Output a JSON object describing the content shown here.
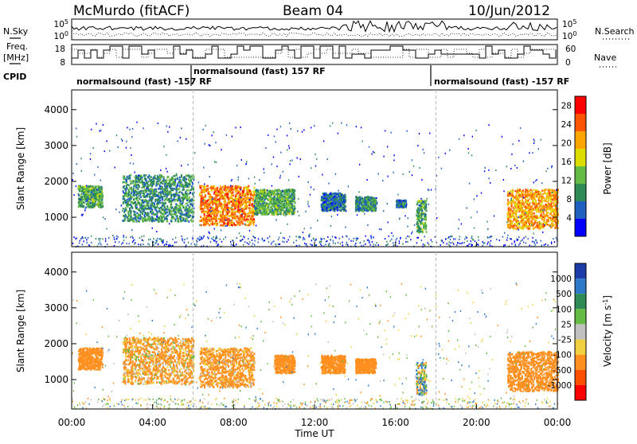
{
  "header": {
    "station": "McMurdo (fitACF)",
    "beam": "Beam 04",
    "date": "10/Jun/2012"
  },
  "params": {
    "nsky_label": "N.Sky",
    "nsearch_label": "N.Search",
    "freq_label_1": "Freq.",
    "freq_label_2": "[MHz]",
    "nave_label": "Nave",
    "cpid_label": "CPID",
    "left_ticks": [
      "10^5",
      "10^0",
      "18",
      "8"
    ],
    "right_ticks": [
      "10^5",
      "10^0",
      "60",
      "0"
    ]
  },
  "cpid": {
    "segments": [
      {
        "label": "normalsound (fast) -157 RF",
        "start_hour": 0.0,
        "end_hour": 6.0
      },
      {
        "label": "normalsound (fast) 157 RF",
        "start_hour": 6.0,
        "end_hour": 18.0
      },
      {
        "label": "normalsound (fast) -157 RF",
        "start_hour": 18.0,
        "end_hour": 24.0
      }
    ]
  },
  "colors": {
    "power": [
      "#0000ff",
      "#1f5fbf",
      "#2e8b57",
      "#66bb44",
      "#dddd00",
      "#ffa500",
      "#ff5500",
      "#ff0000"
    ],
    "velocity": [
      "#1e3ca8",
      "#2e78c8",
      "#2e8b57",
      "#66bb44",
      "#c0c0c0",
      "#f0d040",
      "#ff9020",
      "#ff5000",
      "#ff0000"
    ]
  },
  "chart_data": [
    {
      "type": "heatmap",
      "name": "power",
      "x_label": "Time UT",
      "y_label": "Slant Range [km]",
      "x_ticks": [
        "00:00",
        "04:00",
        "08:00",
        "12:00",
        "16:00",
        "20:00",
        "00:00"
      ],
      "x_range_hours": [
        0,
        24
      ],
      "y_ticks": [
        1000,
        2000,
        3000,
        4000
      ],
      "y_range_km": [
        180,
        4550
      ],
      "colorbar_label": "Power [dB]",
      "colorbar_ticks": [
        4,
        8,
        12,
        16,
        20,
        24,
        28
      ],
      "colorbar_range": [
        0,
        30
      ],
      "echo_regions": [
        {
          "t0": 0.3,
          "t1": 1.5,
          "r0": 1300,
          "r1": 1900,
          "power": 14
        },
        {
          "t0": 2.5,
          "t1": 6.0,
          "r0": 900,
          "r1": 2200,
          "power": 12
        },
        {
          "t0": 6.3,
          "t1": 9.0,
          "r0": 800,
          "r1": 1900,
          "power": 26
        },
        {
          "t0": 9.0,
          "t1": 11.0,
          "r0": 1100,
          "r1": 1800,
          "power": 14
        },
        {
          "t0": 12.3,
          "t1": 13.5,
          "r0": 1200,
          "r1": 1700,
          "power": 10
        },
        {
          "t0": 14.0,
          "t1": 15.0,
          "r0": 1200,
          "r1": 1600,
          "power": 12
        },
        {
          "t0": 16.0,
          "t1": 16.5,
          "r0": 1300,
          "r1": 1500,
          "power": 10
        },
        {
          "t0": 17.0,
          "t1": 17.5,
          "r0": 600,
          "r1": 1500,
          "power": 14
        },
        {
          "t0": 21.5,
          "t1": 24.0,
          "r0": 700,
          "r1": 1800,
          "power": 24
        }
      ]
    },
    {
      "type": "heatmap",
      "name": "velocity",
      "x_label": "Time UT",
      "y_label": "Slant Range [km]",
      "x_ticks": [
        "00:00",
        "04:00",
        "08:00",
        "12:00",
        "16:00",
        "20:00",
        "00:00"
      ],
      "x_range_hours": [
        0,
        24
      ],
      "y_ticks": [
        1000,
        2000,
        3000,
        4000
      ],
      "y_range_km": [
        180,
        4550
      ],
      "colorbar_label": "Velocity [m s^-1]",
      "colorbar_ticks": [
        "1000",
        "500",
        "100",
        "25",
        "-25",
        "-100",
        "-500",
        "-1000"
      ],
      "echo_regions": [
        {
          "t0": 0.3,
          "t1": 1.5,
          "r0": 1300,
          "r1": 1900,
          "velocity": -300
        },
        {
          "t0": 2.5,
          "t1": 6.0,
          "r0": 900,
          "r1": 2200,
          "velocity": -150
        },
        {
          "t0": 6.3,
          "t1": 9.0,
          "r0": 800,
          "r1": 1900,
          "velocity": -200
        },
        {
          "t0": 10.0,
          "t1": 11.0,
          "r0": 1200,
          "r1": 1700,
          "velocity": -300
        },
        {
          "t0": 12.3,
          "t1": 13.5,
          "r0": 1200,
          "r1": 1700,
          "velocity": -300
        },
        {
          "t0": 14.0,
          "t1": 15.0,
          "r0": 1200,
          "r1": 1600,
          "velocity": -300
        },
        {
          "t0": 17.0,
          "t1": 17.5,
          "r0": 600,
          "r1": 1500,
          "velocity": 50
        },
        {
          "t0": 21.5,
          "t1": 24.0,
          "r0": 700,
          "r1": 1800,
          "velocity": -300
        }
      ]
    }
  ]
}
